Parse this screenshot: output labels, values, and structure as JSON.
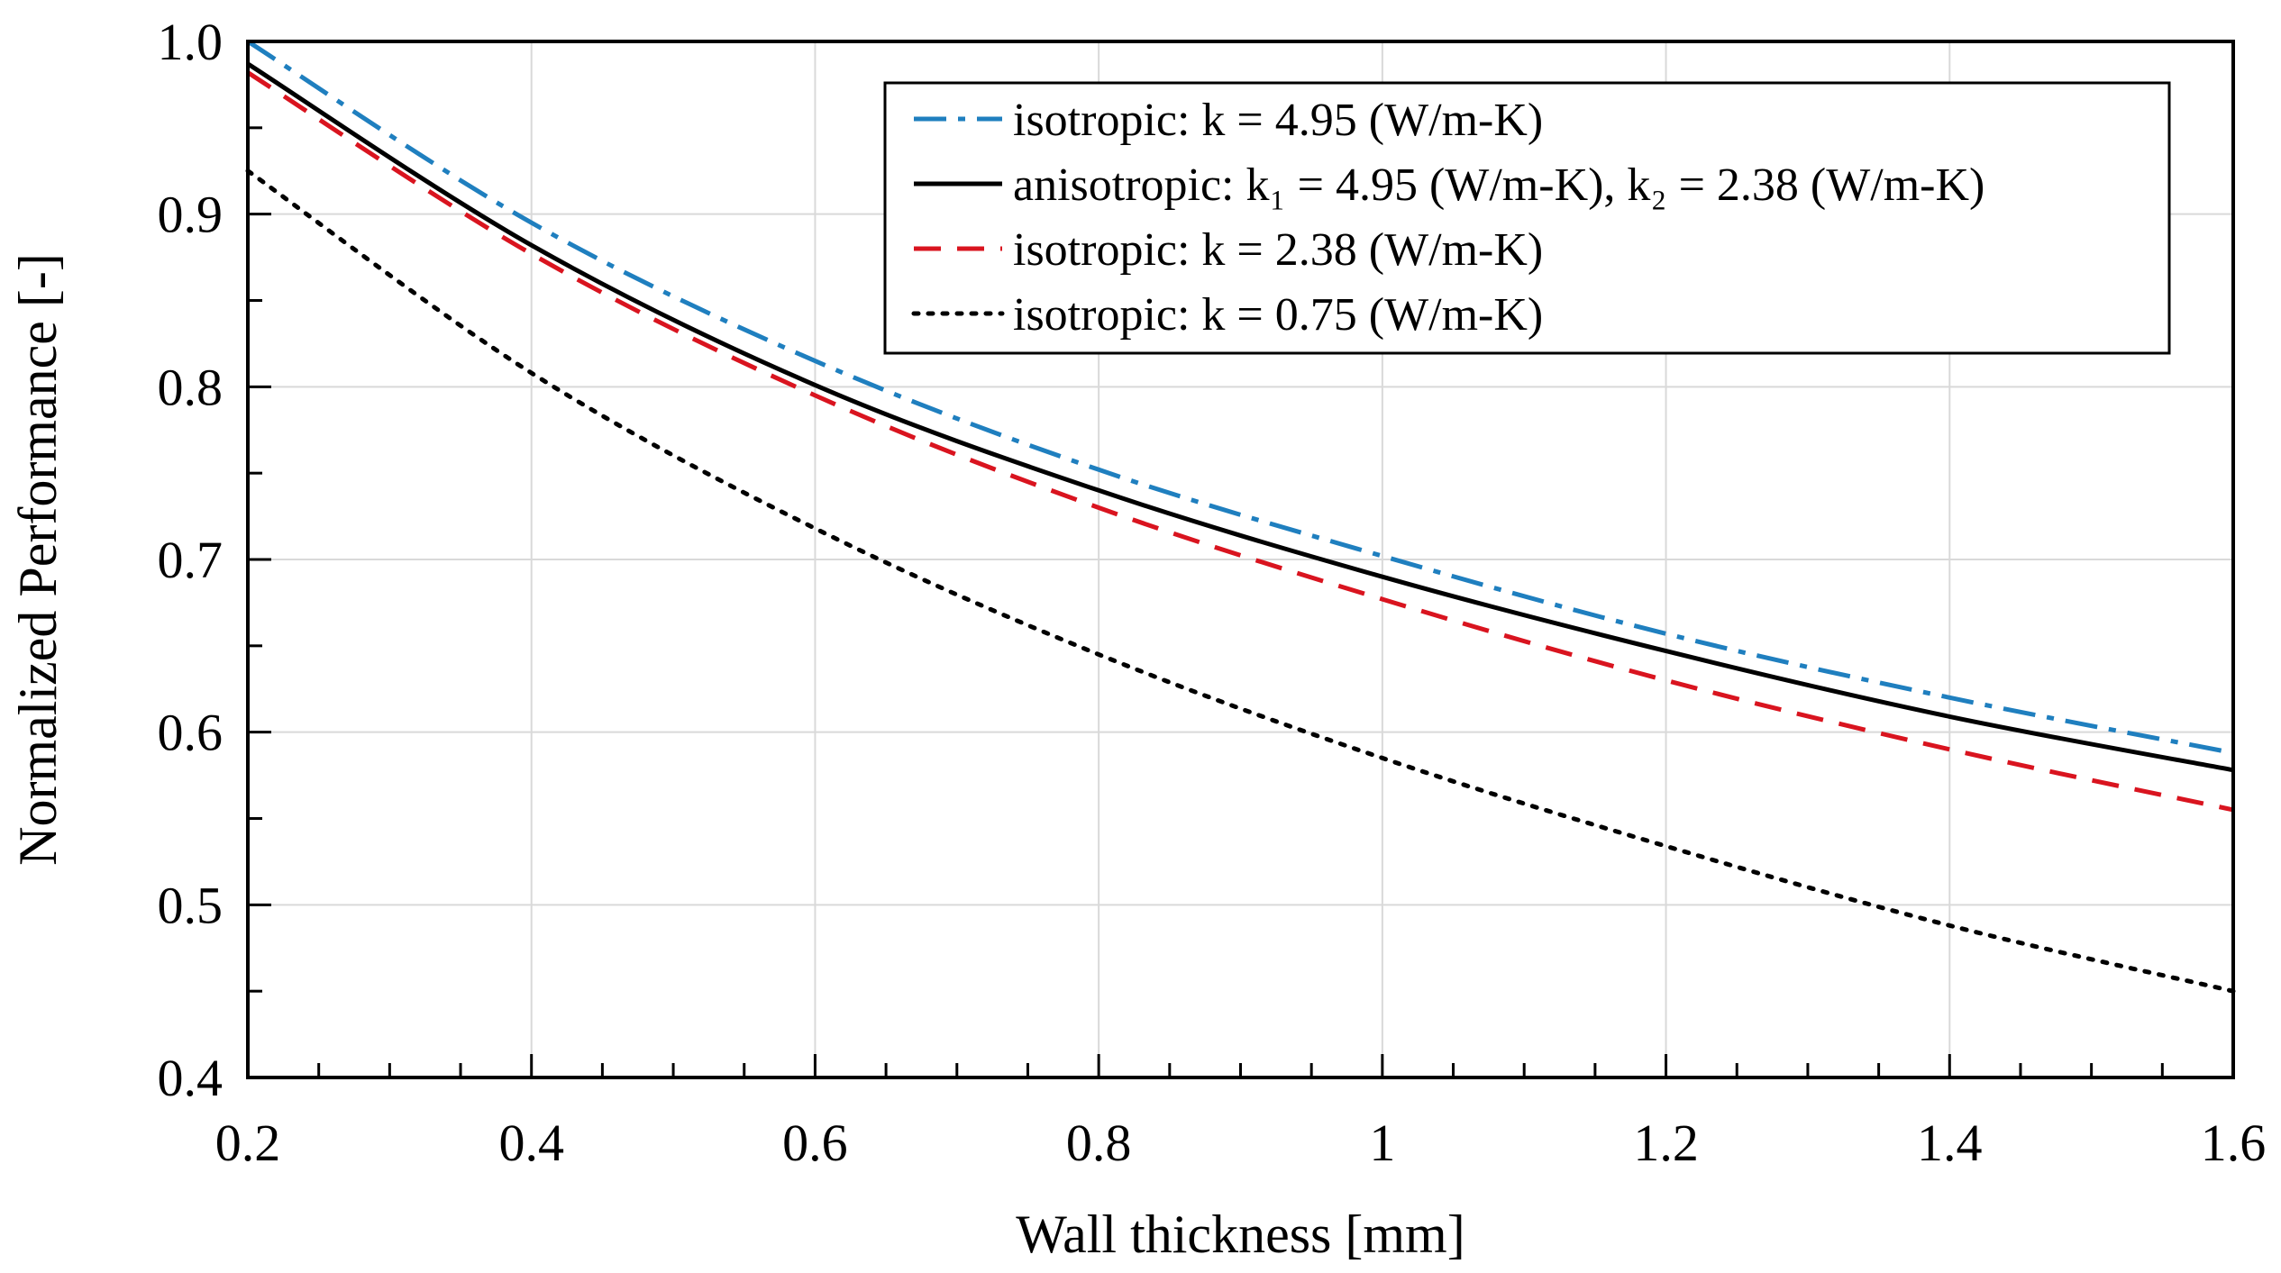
{
  "chart_data": {
    "type": "line",
    "title": "",
    "xlabel": "Wall thickness [mm]",
    "ylabel": "Normalized Performance [-]",
    "xlim": [
      0.2,
      1.6
    ],
    "ylim": [
      0.4,
      1.0
    ],
    "grid": true,
    "legend_position": "top-right",
    "x_ticks": [
      0.2,
      0.4,
      0.6,
      0.8,
      1.0,
      1.2,
      1.4,
      1.6
    ],
    "x_tick_labels": [
      "0.2",
      "0.4",
      "0.6",
      "0.8",
      "1",
      "1.2",
      "1.4",
      "1.6"
    ],
    "y_ticks": [
      0.4,
      0.5,
      0.6,
      0.7,
      0.8,
      0.9,
      1.0
    ],
    "y_tick_labels": [
      "0.4",
      "0.5",
      "0.6",
      "0.7",
      "0.8",
      "0.9",
      "1.0"
    ],
    "x": [
      0.2,
      0.4,
      0.6,
      0.8,
      1.0,
      1.2,
      1.4,
      1.6
    ],
    "series": [
      {
        "name": "isotropic:  k = 4.95 (W/m-K)",
        "color": "#1f7fbf",
        "style": "dashdot",
        "values": [
          1.0,
          0.895,
          0.815,
          0.752,
          0.702,
          0.657,
          0.62,
          0.588
        ]
      },
      {
        "name": "anisotropic: k₁ = 4.95 (W/m-K), k₂ = 2.38 (W/m-K)",
        "color": "#000000",
        "style": "solid",
        "values": [
          0.987,
          0.882,
          0.801,
          0.74,
          0.69,
          0.647,
          0.609,
          0.578
        ]
      },
      {
        "name": "isotropic: k = 2.38 (W/m-K)",
        "color": "#d9141f",
        "style": "dashed",
        "values": [
          0.982,
          0.877,
          0.795,
          0.73,
          0.677,
          0.63,
          0.59,
          0.555
        ]
      },
      {
        "name": "isotropic: k = 0.75 (W/m-K)",
        "color": "#000000",
        "style": "dotted",
        "values": [
          0.925,
          0.808,
          0.718,
          0.645,
          0.585,
          0.534,
          0.488,
          0.45
        ]
      }
    ]
  }
}
